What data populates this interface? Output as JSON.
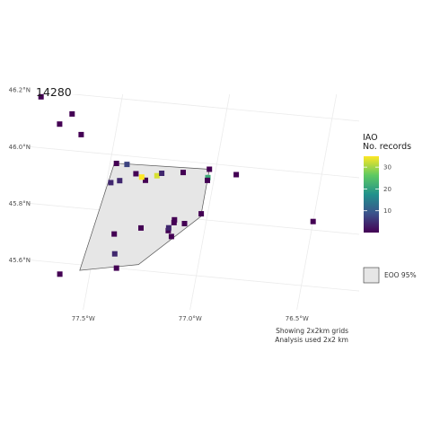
{
  "title": "14280",
  "grid_lines": {
    "lat": [
      45.6,
      45.8,
      46.0,
      46.2
    ],
    "lon": [
      -77.5,
      -77.0,
      -76.5
    ],
    "lat_labels": [
      "45.6°N",
      "45.8°N",
      "46.0°N",
      "46.2°N"
    ],
    "lon_labels": [
      "77.5°W",
      "77.0°W",
      "76.5°W"
    ]
  },
  "legend": {
    "title_line1": "IAO",
    "title_line2": "No. records",
    "ticks": [
      "10",
      "20",
      "30"
    ],
    "tick_values": [
      10,
      20,
      30
    ],
    "max_value": 35,
    "colorbar_colors": [
      "#440154",
      "#3b528b",
      "#21918c",
      "#5ec962",
      "#fde725"
    ],
    "eoo_label": "EOO 95%",
    "eoo_fill": "#e6e6e6"
  },
  "notes": [
    "Showing 2x2km grids",
    "Analysis used 2x2 km"
  ],
  "chart_data": {
    "type": "scatter",
    "hull_fill": "#e6e6e6",
    "hull": [
      [
        -77.48,
        45.97
      ],
      [
        -77.03,
        45.98
      ],
      [
        -77.03,
        45.81
      ],
      [
        -77.28,
        45.62
      ],
      [
        -77.55,
        45.58
      ]
    ],
    "points": [
      {
        "lon": -77.88,
        "lat": 46.18,
        "count": 1
      },
      {
        "lon": -77.72,
        "lat": 46.13,
        "count": 1
      },
      {
        "lon": -77.77,
        "lat": 46.09,
        "count": 1
      },
      {
        "lon": -77.66,
        "lat": 46.06,
        "count": 1
      },
      {
        "lon": -77.47,
        "lat": 45.97,
        "count": 1
      },
      {
        "lon": -77.42,
        "lat": 45.97,
        "count": 8
      },
      {
        "lon": -77.03,
        "lat": 45.98,
        "count": 1
      },
      {
        "lon": -76.9,
        "lat": 45.97,
        "count": 1
      },
      {
        "lon": -77.37,
        "lat": 45.94,
        "count": 1
      },
      {
        "lon": -77.32,
        "lat": 45.92,
        "count": 1
      },
      {
        "lon": -77.34,
        "lat": 45.93,
        "count": 35
      },
      {
        "lon": -77.27,
        "lat": 45.94,
        "count": 33
      },
      {
        "lon": -77.25,
        "lat": 45.95,
        "count": 5
      },
      {
        "lon": -77.15,
        "lat": 45.96,
        "count": 1
      },
      {
        "lon": -77.03,
        "lat": 45.95,
        "count": 22
      },
      {
        "lon": -77.03,
        "lat": 45.94,
        "count": 1
      },
      {
        "lon": -77.44,
        "lat": 45.91,
        "count": 5
      },
      {
        "lon": -77.48,
        "lat": 45.9,
        "count": 5
      },
      {
        "lon": -77.03,
        "lat": 45.82,
        "count": 1
      },
      {
        "lon": -77.15,
        "lat": 45.79,
        "count": 1
      },
      {
        "lon": -77.15,
        "lat": 45.78,
        "count": 1
      },
      {
        "lon": -77.1,
        "lat": 45.78,
        "count": 1
      },
      {
        "lon": -77.3,
        "lat": 45.75,
        "count": 1
      },
      {
        "lon": -77.17,
        "lat": 45.75,
        "count": 1
      },
      {
        "lon": -77.17,
        "lat": 45.76,
        "count": 5
      },
      {
        "lon": -77.15,
        "lat": 45.73,
        "count": 1
      },
      {
        "lon": -77.42,
        "lat": 45.72,
        "count": 1
      },
      {
        "lon": -77.4,
        "lat": 45.65,
        "count": 5
      },
      {
        "lon": -77.38,
        "lat": 45.6,
        "count": 1
      },
      {
        "lon": -76.5,
        "lat": 45.83,
        "count": 1
      },
      {
        "lon": -77.64,
        "lat": 45.56,
        "count": 1
      }
    ]
  }
}
